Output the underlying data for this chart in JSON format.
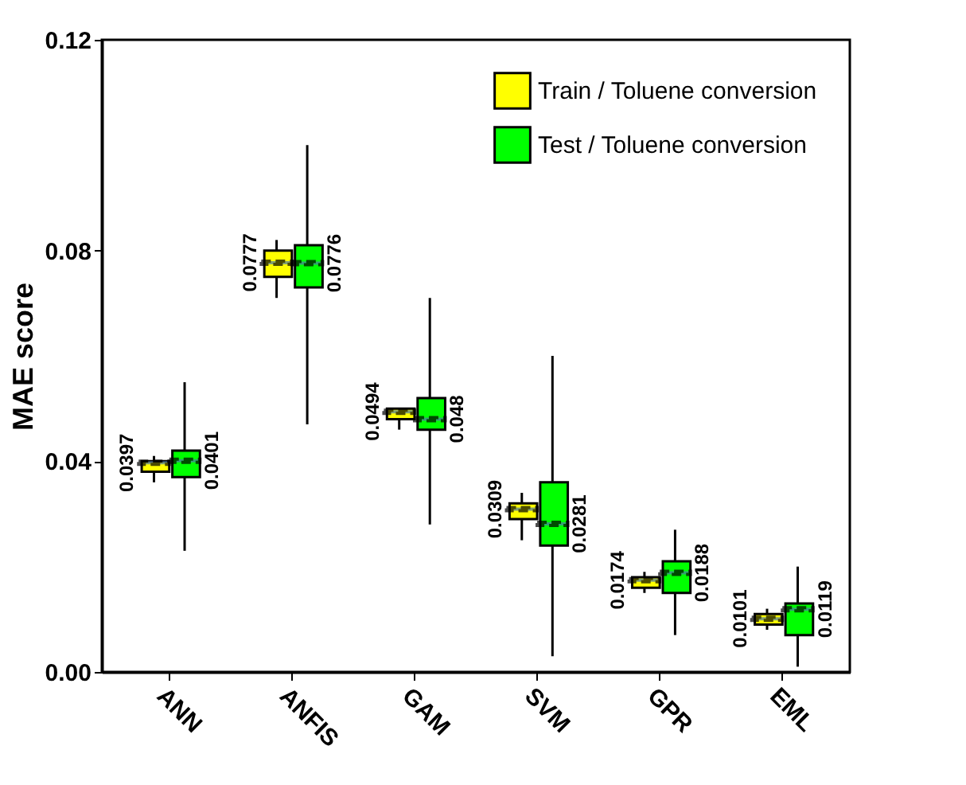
{
  "chart_data": {
    "type": "box",
    "ylabel": "MAE score",
    "categories": [
      "ANN",
      "ANFIS",
      "GAM",
      "SVM",
      "GPR",
      "EML"
    ],
    "ylim": [
      0,
      0.12
    ],
    "yticks": [
      {
        "value": 0,
        "label": "0.00"
      },
      {
        "value": 0.04,
        "label": "0.04"
      },
      {
        "value": 0.08,
        "label": "0.08"
      },
      {
        "value": 0.12,
        "label": "0.12"
      }
    ],
    "legend": "top right",
    "grid": false,
    "series": [
      {
        "name": "Train / Toluene conversion",
        "color": "#ffff00",
        "boxes": [
          {
            "low": 0.036,
            "q1": 0.038,
            "median": 0.0397,
            "q3": 0.04,
            "high": 0.041
          },
          {
            "low": 0.071,
            "q1": 0.075,
            "median": 0.0777,
            "q3": 0.08,
            "high": 0.082
          },
          {
            "low": 0.046,
            "q1": 0.048,
            "median": 0.0494,
            "q3": 0.05,
            "high": 0.05
          },
          {
            "low": 0.025,
            "q1": 0.029,
            "median": 0.0309,
            "q3": 0.032,
            "high": 0.034
          },
          {
            "low": 0.015,
            "q1": 0.016,
            "median": 0.0174,
            "q3": 0.018,
            "high": 0.019
          },
          {
            "low": 0.008,
            "q1": 0.009,
            "median": 0.0101,
            "q3": 0.011,
            "high": 0.012
          }
        ]
      },
      {
        "name": "Test /  Toluene conversion",
        "color": "#00ff00",
        "boxes": [
          {
            "low": 0.023,
            "q1": 0.037,
            "median": 0.0401,
            "q3": 0.042,
            "high": 0.055
          },
          {
            "low": 0.047,
            "q1": 0.073,
            "median": 0.0776,
            "q3": 0.081,
            "high": 0.1
          },
          {
            "low": 0.028,
            "q1": 0.046,
            "median": 0.048,
            "q3": 0.052,
            "high": 0.071
          },
          {
            "low": 0.003,
            "q1": 0.024,
            "median": 0.0281,
            "q3": 0.036,
            "high": 0.06
          },
          {
            "low": 0.007,
            "q1": 0.015,
            "median": 0.0188,
            "q3": 0.021,
            "high": 0.027
          },
          {
            "low": 0.001,
            "q1": 0.007,
            "median": 0.0119,
            "q3": 0.013,
            "high": 0.02
          }
        ]
      }
    ],
    "annotations": [
      {
        "text": "0.0397",
        "x": "ANN",
        "y": 0.0397
      },
      {
        "text": "0.0401",
        "x": "ANN",
        "y": 0.0401
      },
      {
        "text": "0.0777",
        "x": "ANFIS",
        "y": 0.0777
      },
      {
        "text": "0.0776",
        "x": "ANFIS",
        "y": 0.0776
      },
      {
        "text": "0.0494",
        "x": "GAM",
        "y": 0.0494
      },
      {
        "text": "0.048",
        "x": "GAM",
        "y": 0.048
      },
      {
        "text": "0.0309",
        "x": "SVM",
        "y": 0.0309
      },
      {
        "text": "0.0281",
        "x": "SVM",
        "y": 0.0281
      },
      {
        "text": "0.0174",
        "x": "GPR",
        "y": 0.0174
      },
      {
        "text": "0.0188",
        "x": "GPR",
        "y": 0.0188
      },
      {
        "text": "0.0101",
        "x": "EML",
        "y": 0.0101
      },
      {
        "text": "0.0119",
        "x": "EML",
        "y": 0.0119
      }
    ]
  }
}
